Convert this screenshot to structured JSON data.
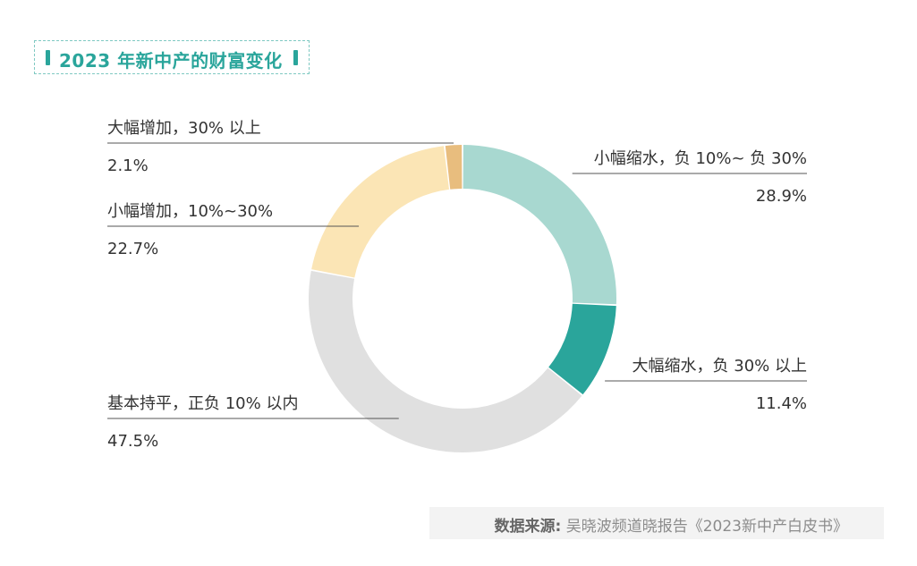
{
  "title": "2023 年新中产的财富变化",
  "source": {
    "label": "数据来源:",
    "text": "吴晓波频道晓报告《2023新中产白皮书》"
  },
  "chart_data": {
    "type": "pie",
    "variant": "donut",
    "slices": [
      {
        "label": "小幅缩水，负 10%~ 负 30%",
        "value": 28.9,
        "value_label": "28.9%",
        "color": "#a8d8d0"
      },
      {
        "label": "大幅缩水，负 30% 以上",
        "value": 11.4,
        "value_label": "11.4%",
        "color": "#2aa59b"
      },
      {
        "label": "基本持平，正负 10% 以内",
        "value": 47.5,
        "value_label": "47.5%",
        "color": "#e0e0e0"
      },
      {
        "label": "小幅增加，10%~30%",
        "value": 22.7,
        "value_label": "22.7%",
        "color": "#fbe5b5"
      },
      {
        "label": "大幅增加，30% 以上",
        "value": 2.1,
        "value_label": "2.1%",
        "color": "#e8bd7e"
      }
    ]
  }
}
